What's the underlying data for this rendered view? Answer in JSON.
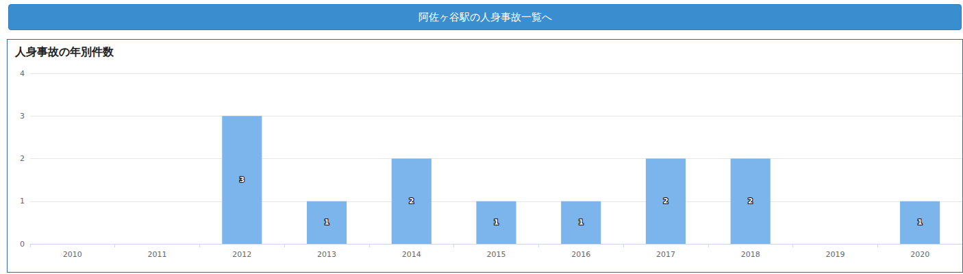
{
  "button": {
    "label": "阿佐ヶ谷駅の人身事故一覧へ"
  },
  "chart_data": {
    "type": "bar",
    "title": "人身事故の年別件数",
    "categories": [
      "2010",
      "2011",
      "2012",
      "2013",
      "2014",
      "2015",
      "2016",
      "2017",
      "2018",
      "2019",
      "2020"
    ],
    "values": [
      0,
      0,
      3,
      1,
      2,
      1,
      1,
      2,
      2,
      0,
      1
    ],
    "color": "#7cb5ec",
    "ylim": [
      0,
      4
    ],
    "yticks": [
      0,
      1,
      2,
      3,
      4
    ],
    "grid": true,
    "data_labels": true
  }
}
